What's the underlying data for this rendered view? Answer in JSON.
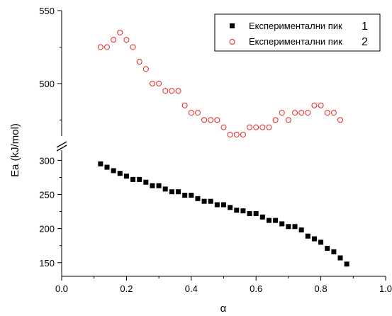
{
  "chart_data": {
    "type": "scatter",
    "xlabel": "α",
    "ylabel": "Ea (kJ/mol)",
    "x_range": [
      0.0,
      1.0
    ],
    "x_ticks": [
      "0.0",
      "0.2",
      "0.4",
      "0.6",
      "0.8",
      "1.0"
    ],
    "y_axis_break": true,
    "y_segments": [
      {
        "range": [
          130,
          315
        ],
        "ticks": [
          "150",
          "200",
          "250",
          "300"
        ]
      },
      {
        "range": [
          464,
          550
        ],
        "ticks": [
          "500",
          "550"
        ]
      }
    ],
    "legend": {
      "placement": "top-right",
      "numbering": [
        "1",
        "2"
      ]
    },
    "series": [
      {
        "name": "Експериментални пик",
        "marker": "filled-square",
        "color": "#000000",
        "points": [
          [
            0.12,
            295
          ],
          [
            0.14,
            290
          ],
          [
            0.16,
            285
          ],
          [
            0.18,
            281
          ],
          [
            0.2,
            277
          ],
          [
            0.22,
            272
          ],
          [
            0.24,
            272
          ],
          [
            0.26,
            268
          ],
          [
            0.28,
            263
          ],
          [
            0.3,
            263
          ],
          [
            0.32,
            258
          ],
          [
            0.34,
            254
          ],
          [
            0.36,
            254
          ],
          [
            0.38,
            249
          ],
          [
            0.4,
            249
          ],
          [
            0.42,
            244
          ],
          [
            0.44,
            240
          ],
          [
            0.46,
            240
          ],
          [
            0.48,
            235
          ],
          [
            0.5,
            235
          ],
          [
            0.52,
            231
          ],
          [
            0.54,
            227
          ],
          [
            0.56,
            226
          ],
          [
            0.58,
            222
          ],
          [
            0.6,
            222
          ],
          [
            0.62,
            217
          ],
          [
            0.64,
            212
          ],
          [
            0.66,
            212
          ],
          [
            0.68,
            207
          ],
          [
            0.7,
            203
          ],
          [
            0.72,
            203
          ],
          [
            0.74,
            198
          ],
          [
            0.76,
            189
          ],
          [
            0.78,
            185
          ],
          [
            0.8,
            180
          ],
          [
            0.82,
            171
          ],
          [
            0.84,
            166
          ],
          [
            0.86,
            157
          ],
          [
            0.88,
            148
          ]
        ]
      },
      {
        "name": "Експериментални пик",
        "marker": "open-circle",
        "color": "#e8211d",
        "points": [
          [
            0.12,
            525
          ],
          [
            0.14,
            525
          ],
          [
            0.16,
            530
          ],
          [
            0.18,
            535
          ],
          [
            0.2,
            530
          ],
          [
            0.22,
            525
          ],
          [
            0.24,
            515
          ],
          [
            0.26,
            510
          ],
          [
            0.28,
            500
          ],
          [
            0.3,
            500
          ],
          [
            0.32,
            495
          ],
          [
            0.34,
            495
          ],
          [
            0.36,
            495
          ],
          [
            0.38,
            485
          ],
          [
            0.4,
            480
          ],
          [
            0.42,
            480
          ],
          [
            0.44,
            475
          ],
          [
            0.46,
            475
          ],
          [
            0.48,
            475
          ],
          [
            0.5,
            470
          ],
          [
            0.52,
            465
          ],
          [
            0.54,
            465
          ],
          [
            0.56,
            465
          ],
          [
            0.58,
            470
          ],
          [
            0.6,
            470
          ],
          [
            0.62,
            470
          ],
          [
            0.64,
            470
          ],
          [
            0.66,
            475
          ],
          [
            0.68,
            480
          ],
          [
            0.7,
            475
          ],
          [
            0.72,
            480
          ],
          [
            0.74,
            480
          ],
          [
            0.76,
            480
          ],
          [
            0.78,
            485
          ],
          [
            0.8,
            485
          ],
          [
            0.82,
            480
          ],
          [
            0.84,
            480
          ],
          [
            0.86,
            475
          ]
        ]
      }
    ]
  }
}
